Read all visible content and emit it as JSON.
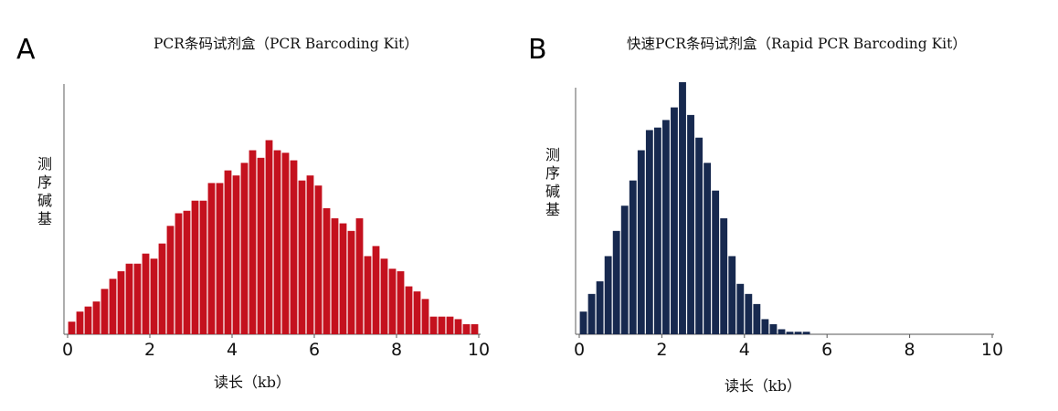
{
  "chart_data": [
    {
      "type": "bar",
      "panel": "A",
      "title": "PCR条码试剂盒（PCR Barcoding Kit）",
      "xlabel": "读长（kb）",
      "ylabel": "测序碱基",
      "color": "#c4111e",
      "xlim": [
        0,
        10
      ],
      "xticks": [
        0,
        2,
        4,
        6,
        8,
        10
      ],
      "bin_width": 0.2,
      "x": [
        0.0,
        0.2,
        0.4,
        0.6,
        0.8,
        1.0,
        1.2,
        1.4,
        1.6,
        1.8,
        2.0,
        2.2,
        2.4,
        2.6,
        2.8,
        3.0,
        3.2,
        3.4,
        3.6,
        3.8,
        4.0,
        4.2,
        4.4,
        4.6,
        4.8,
        5.0,
        5.2,
        5.4,
        5.6,
        5.8,
        6.0,
        6.2,
        6.4,
        6.6,
        6.8,
        7.0,
        7.2,
        7.4,
        7.6,
        7.8,
        8.0,
        8.2,
        8.4,
        8.6,
        8.8,
        9.0,
        9.2,
        9.4,
        9.6,
        9.8
      ],
      "values": [
        5,
        9,
        11,
        13,
        18,
        22,
        25,
        28,
        28,
        32,
        30,
        36,
        43,
        48,
        49,
        53,
        53,
        60,
        60,
        65,
        63,
        68,
        73,
        70,
        77,
        73,
        72,
        69,
        61,
        63,
        59,
        50,
        46,
        44,
        41,
        46,
        31,
        35,
        30,
        26,
        25,
        19,
        17,
        14,
        7,
        7,
        7,
        6,
        4,
        4
      ],
      "ymax": 100
    },
    {
      "type": "bar",
      "panel": "B",
      "title": "快速PCR条码试剂盒（Rapid PCR Barcoding Kit）",
      "xlabel": "读长（kb）",
      "ylabel": "测序碱基",
      "color": "#17294f",
      "xlim": [
        0,
        10
      ],
      "xticks": [
        0,
        2,
        4,
        6,
        8,
        10
      ],
      "bin_width": 0.2,
      "x": [
        0.0,
        0.2,
        0.4,
        0.6,
        0.8,
        1.0,
        1.2,
        1.4,
        1.6,
        1.8,
        2.0,
        2.2,
        2.4,
        2.6,
        2.8,
        3.0,
        3.2,
        3.4,
        3.6,
        3.8,
        4.0,
        4.2,
        4.4,
        4.6,
        4.8,
        5.0,
        5.2,
        5.4
      ],
      "values": [
        9,
        16,
        21,
        31,
        41,
        51,
        61,
        73,
        81,
        82,
        85,
        90,
        100,
        87,
        78,
        68,
        57,
        46,
        31,
        20,
        16,
        12,
        6,
        4,
        2,
        1,
        1,
        1
      ],
      "ymax": 100
    }
  ]
}
